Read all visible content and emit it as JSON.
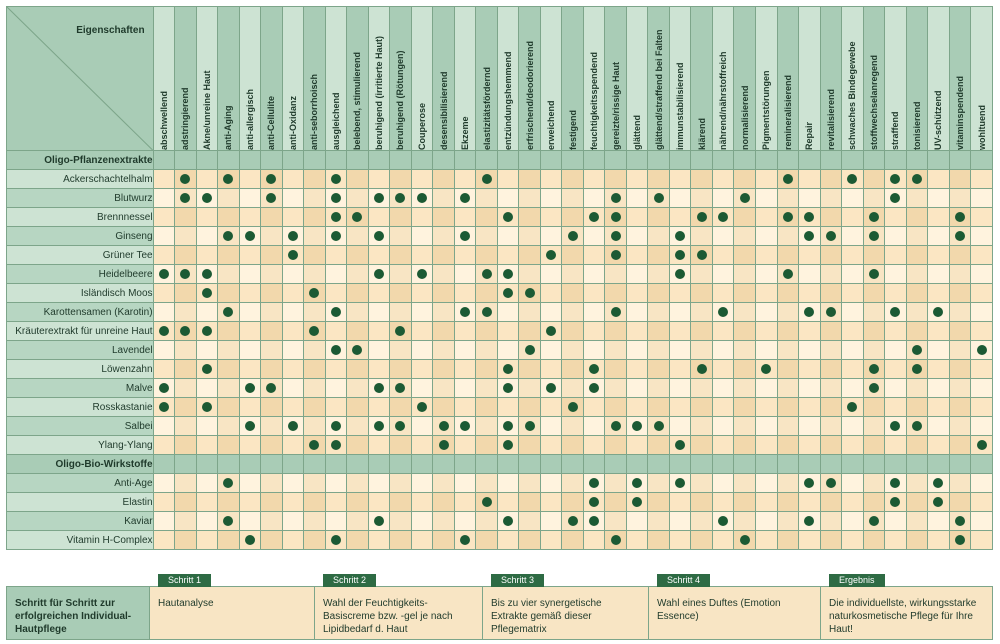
{
  "header": {
    "corner_label": "Eigenschaften"
  },
  "columns": [
    "abschwellend",
    "adstringierend",
    "Akne/unreine Haut",
    "anti-Aging",
    "anti-allergisch",
    "anti-Cellulite",
    "anti-Oxidanz",
    "anti-seborrhoisch",
    "ausgleichend",
    "belebend, stimulierend",
    "beruhigend (irritierte Haut)",
    "beruhigend (Rötungen)",
    "Couperose",
    "desensibilisierend",
    "Ekzeme",
    "elastizitätsfördernd",
    "entzündungshemmend",
    "erfrischend/deodorierend",
    "erweichend",
    "festigend",
    "feuchtigkeitsspendend",
    "gereizte/rissige Haut",
    "glättend",
    "glättend/straffend bei Falten",
    "immunstabilisierend",
    "klärend",
    "nährend/nährstoffreich",
    "normalisierend",
    "Pigmentstörungen",
    "remineralisierend",
    "Repair",
    "revitalisierend",
    "schwaches Bindegewebe",
    "stoffwechselanregend",
    "straffend",
    "tonisierend",
    "UV-schützend",
    "vitaminspendend",
    "wohltuend"
  ],
  "sections": [
    {
      "label": "Oligo-Pflanzenextrakte",
      "rows": [
        {
          "name": "Ackerschachtelhalm",
          "dots": [
            1,
            3,
            5,
            8,
            15,
            29,
            32,
            34,
            35
          ]
        },
        {
          "name": "Blutwurz",
          "dots": [
            1,
            2,
            5,
            8,
            10,
            11,
            12,
            14,
            21,
            23,
            27,
            34
          ]
        },
        {
          "name": "Brennnessel",
          "dots": [
            8,
            9,
            16,
            20,
            21,
            25,
            26,
            29,
            30,
            33,
            37
          ]
        },
        {
          "name": "Ginseng",
          "dots": [
            3,
            4,
            6,
            8,
            10,
            14,
            19,
            21,
            24,
            30,
            31,
            33,
            37
          ]
        },
        {
          "name": "Grüner Tee",
          "dots": [
            6,
            18,
            21,
            24,
            25
          ]
        },
        {
          "name": "Heidelbeere",
          "dots": [
            0,
            1,
            2,
            10,
            12,
            15,
            16,
            24,
            29,
            33
          ]
        },
        {
          "name": "Isländisch Moos",
          "dots": [
            2,
            7,
            16,
            17
          ]
        },
        {
          "name": "Karottensamen (Karotin)",
          "dots": [
            3,
            8,
            14,
            15,
            21,
            26,
            30,
            31,
            34,
            36
          ]
        },
        {
          "name": "Kräuterextrakt für unreine Haut",
          "dots": [
            0,
            1,
            2,
            7,
            11,
            18
          ]
        },
        {
          "name": "Lavendel",
          "dots": [
            8,
            9,
            17,
            35,
            38
          ]
        },
        {
          "name": "Löwenzahn",
          "dots": [
            2,
            16,
            20,
            25,
            28,
            33,
            35
          ]
        },
        {
          "name": "Malve",
          "dots": [
            0,
            4,
            5,
            10,
            11,
            16,
            18,
            20,
            33
          ]
        },
        {
          "name": "Rosskastanie",
          "dots": [
            0,
            2,
            12,
            19,
            32
          ]
        },
        {
          "name": "Salbei",
          "dots": [
            4,
            6,
            8,
            10,
            11,
            13,
            14,
            16,
            17,
            21,
            22,
            23,
            34,
            35
          ]
        },
        {
          "name": "Ylang-Ylang",
          "dots": [
            7,
            8,
            13,
            16,
            24,
            38
          ]
        }
      ]
    },
    {
      "label": "Oligo-Bio-Wirkstoffe",
      "rows": [
        {
          "name": "Anti-Age",
          "dots": [
            3,
            20,
            22,
            24,
            30,
            31,
            34,
            36
          ]
        },
        {
          "name": "Elastin",
          "dots": [
            15,
            20,
            22,
            34,
            36
          ]
        },
        {
          "name": "Kaviar",
          "dots": [
            3,
            10,
            16,
            19,
            20,
            26,
            30,
            33,
            37
          ]
        },
        {
          "name": "Vitamin H-Complex",
          "dots": [
            4,
            8,
            14,
            21,
            27,
            37
          ]
        }
      ]
    }
  ],
  "steps": {
    "title": "Schritt für Schritt zur erfolg­reichen Individual-Hautpflege",
    "items": [
      {
        "tab": "Schritt 1",
        "text": "Hautanalyse"
      },
      {
        "tab": "Schritt 2",
        "text": "Wahl der Feuchtigkeits-Basiscreme bzw. -gel je nach Lipidbedarf d. Haut"
      },
      {
        "tab": "Schritt 3",
        "text": "Bis zu vier synergetische Extrakte gemäß dieser Pflegematrix"
      },
      {
        "tab": "Schritt 4",
        "text": "Wahl eines Duftes (Emotion Essence)"
      },
      {
        "tab": "Ergebnis",
        "text": "Die individuellste, wirkungsstarke naturkosmetische Pflege für Ihre Haut!"
      }
    ]
  },
  "colors": {
    "dot": "#1c5a34",
    "tab": "#2e6b44"
  }
}
